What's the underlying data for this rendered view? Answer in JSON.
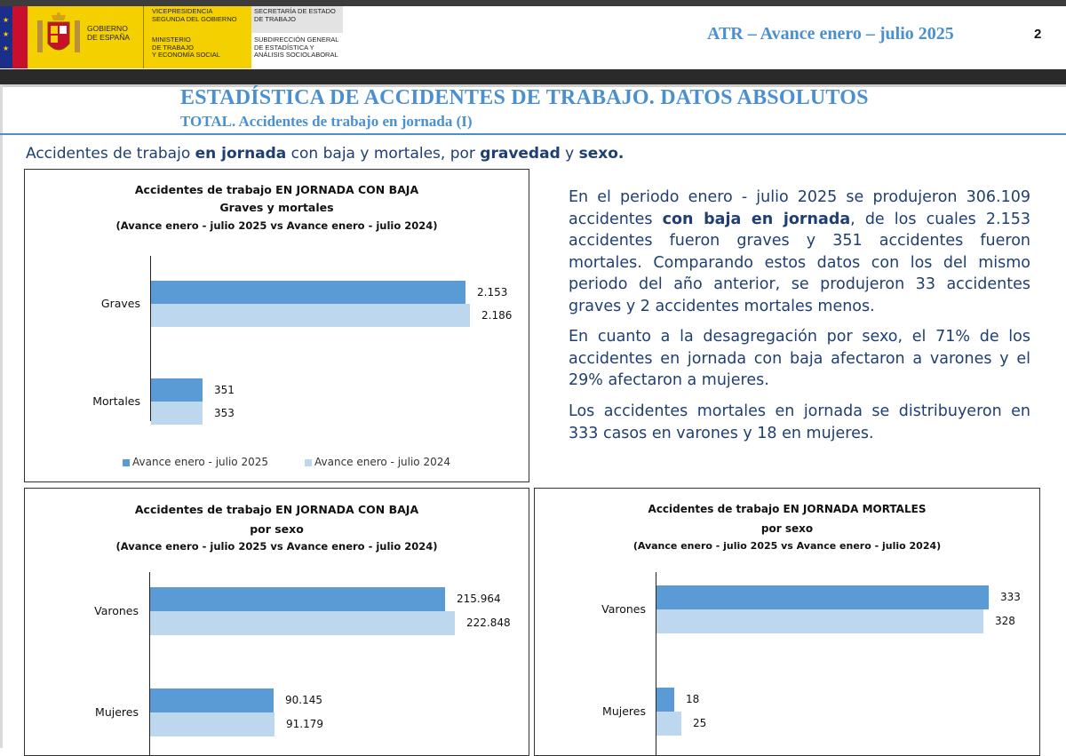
{
  "header": {
    "gov_line1": "GOBIERNO",
    "gov_line2": "DE ESPAÑA",
    "vice_line1": "VICEPRESIDENCIA",
    "vice_line2": "SEGUNDA DEL GOBIERNO",
    "min_line1": "MINISTERIO",
    "min_line2": "DE TRABAJO",
    "min_line3": "Y ECONOMÍA SOCIAL",
    "sec_line1": "SECRETARÍA DE ESTADO",
    "sec_line2": "DE TRABAJO",
    "sub_line1": "SUBDIRECCIÓN GENERAL",
    "sub_line2": "DE ESTADÍSTICA Y",
    "sub_line3": "ANÁLISIS SOCIOLABORAL",
    "report": "ATR – Avance enero – julio 2025",
    "page": "2"
  },
  "title": "ESTADÍSTICA DE ACCIDENTES DE TRABAJO. DATOS ABSOLUTOS",
  "subtitle": "TOTAL. Accidentes de trabajo en jornada (I)",
  "lead": {
    "p1": "Accidentes de trabajo ",
    "b1": "en jornada",
    "p2": " con baja y mortales, por ",
    "b2": "gravedad",
    "p3": " y ",
    "b3": "sexo."
  },
  "text": {
    "para1_a": "En el periodo enero - julio 2025 se produjeron 306.109 accidentes ",
    "para1_b": "con baja en jornada",
    "para1_c": ", de los cuales 2.153 accidentes fueron graves y 351 accidentes fueron mortales. Comparando estos datos con los del mismo periodo del año anterior, se produjeron 33 accidentes graves y 2 accidentes mortales menos.",
    "para2": "En cuanto a la desagregación por sexo, el 71% de los accidentes en jornada con baja afectaron a varones y el 29% afectaron a mujeres.",
    "para3": "Los accidentes mortales en jornada se distribuyeron en 333 casos en varones y 18 en mujeres."
  },
  "colors": {
    "series_2025": "#5b9bd5",
    "series_2024": "#bdd7ee",
    "title_blue": "#4a8fd0",
    "text_navy": "#1f3f73"
  },
  "chart_data": [
    {
      "type": "bar",
      "orientation": "horizontal",
      "title": "Accidentes de trabajo EN JORNADA CON BAJA",
      "subtitle": "Graves y mortales",
      "note": "(Avance enero - julio 2025 vs Avance enero - julio 2024)",
      "categories": [
        "Graves",
        "Mortales"
      ],
      "series": [
        {
          "name": "Avance enero - julio 2025",
          "values": [
            2153,
            351
          ],
          "labels": [
            "2.153",
            "351"
          ]
        },
        {
          "name": "Avance enero - julio 2024",
          "values": [
            2186,
            353
          ],
          "labels": [
            "2.186",
            "353"
          ]
        }
      ],
      "legend": "bottom"
    },
    {
      "type": "bar",
      "orientation": "horizontal",
      "title": "Accidentes de trabajo EN JORNADA CON BAJA",
      "subtitle": "por sexo",
      "note": "(Avance enero - julio 2025 vs Avance enero - julio 2024)",
      "categories": [
        "Varones",
        "Mujeres"
      ],
      "series": [
        {
          "name": "Avance enero - julio 2025",
          "values": [
            215964,
            90145
          ],
          "labels": [
            "215.964",
            "90.145"
          ]
        },
        {
          "name": "Avance enero - julio 2024",
          "values": [
            222848,
            91179
          ],
          "labels": [
            "222.848",
            "91.179"
          ]
        }
      ]
    },
    {
      "type": "bar",
      "orientation": "horizontal",
      "title": "Accidentes de trabajo EN JORNADA MORTALES",
      "subtitle": "por sexo",
      "note": "(Avance enero - julio 2025 vs Avance enero - julio 2024)",
      "categories": [
        "Varones",
        "Mujeres"
      ],
      "series": [
        {
          "name": "Avance enero - julio 2025",
          "values": [
            333,
            18
          ],
          "labels": [
            "333",
            "18"
          ]
        },
        {
          "name": "Avance enero - julio 2024",
          "values": [
            328,
            25
          ],
          "labels": [
            "328",
            "25"
          ]
        }
      ]
    }
  ]
}
